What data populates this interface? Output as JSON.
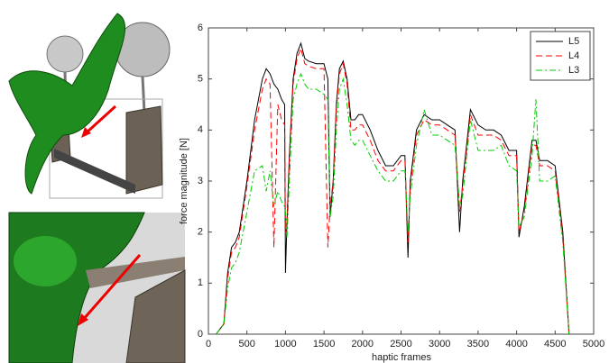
{
  "chart_data": {
    "type": "line",
    "xlabel": "haptic frames",
    "ylabel": "force magnitude [N]",
    "x": [
      100,
      150,
      200,
      250,
      300,
      350,
      400,
      500,
      600,
      700,
      750,
      800,
      850,
      900,
      950,
      990,
      1000,
      1020,
      1050,
      1100,
      1150,
      1200,
      1250,
      1300,
      1400,
      1500,
      1550,
      1580,
      1620,
      1660,
      1700,
      1750,
      1800,
      1850,
      1900,
      1950,
      2000,
      2100,
      2200,
      2300,
      2400,
      2500,
      2550,
      2590,
      2620,
      2700,
      2800,
      2900,
      3000,
      3100,
      3200,
      3260,
      3300,
      3400,
      3500,
      3600,
      3700,
      3800,
      3900,
      4000,
      4030,
      4100,
      4200,
      4250,
      4300,
      4400,
      4500,
      4600,
      4680
    ],
    "series": [
      {
        "name": "L5",
        "color": "#000000",
        "linestyle": "solid",
        "values": [
          0,
          0.1,
          0.2,
          1.2,
          1.7,
          1.8,
          2.0,
          3.0,
          4.2,
          5.0,
          5.2,
          5.1,
          4.9,
          4.8,
          4.6,
          4.5,
          1.2,
          2.2,
          3.5,
          5.0,
          5.5,
          5.7,
          5.4,
          5.35,
          5.3,
          5.3,
          5.0,
          2.3,
          3.0,
          4.5,
          5.2,
          5.35,
          5.0,
          4.2,
          4.2,
          4.3,
          4.3,
          4.0,
          3.6,
          3.3,
          3.3,
          3.5,
          3.5,
          1.5,
          3.0,
          4.0,
          4.3,
          4.2,
          4.2,
          4.1,
          4.0,
          2.0,
          3.0,
          4.4,
          4.1,
          4.0,
          4.0,
          3.9,
          3.6,
          3.6,
          1.9,
          2.5,
          3.8,
          3.8,
          3.4,
          3.4,
          3.3,
          2.0,
          0
        ]
      },
      {
        "name": "L4",
        "color": "#ff0000",
        "linestyle": "dashed",
        "values": [
          0,
          0.1,
          0.2,
          1.1,
          1.6,
          1.7,
          1.9,
          2.9,
          4.0,
          4.8,
          5.0,
          4.9,
          1.7,
          4.5,
          4.2,
          4.1,
          2.0,
          2.1,
          3.4,
          4.9,
          5.4,
          5.6,
          5.3,
          5.25,
          5.2,
          5.2,
          1.7,
          2.5,
          3.0,
          4.4,
          5.1,
          5.3,
          4.9,
          4.0,
          4.0,
          4.1,
          4.1,
          3.8,
          3.4,
          3.2,
          3.2,
          3.4,
          3.4,
          1.8,
          2.9,
          3.9,
          4.2,
          4.1,
          4.1,
          4.0,
          3.9,
          2.4,
          2.9,
          4.3,
          3.9,
          3.9,
          3.9,
          3.8,
          3.5,
          3.5,
          2.0,
          2.4,
          3.7,
          3.7,
          3.3,
          3.3,
          3.2,
          1.9,
          0
        ]
      },
      {
        "name": "L3",
        "color": "#00cc00",
        "linestyle": "dashdot",
        "values": [
          0,
          0.1,
          0.2,
          0.9,
          1.3,
          1.4,
          1.6,
          2.4,
          3.2,
          3.3,
          2.8,
          3.2,
          2.5,
          2.8,
          2.6,
          2.5,
          2.4,
          1.9,
          3.0,
          4.6,
          4.9,
          5.1,
          4.9,
          4.8,
          4.8,
          4.7,
          4.6,
          2.3,
          2.7,
          4.0,
          4.8,
          5.0,
          4.5,
          3.8,
          3.7,
          3.8,
          3.8,
          3.5,
          3.2,
          3.0,
          3.0,
          3.2,
          3.2,
          2.0,
          2.7,
          3.7,
          4.4,
          3.9,
          3.9,
          3.8,
          3.7,
          2.5,
          2.7,
          4.2,
          3.6,
          3.6,
          3.6,
          3.7,
          3.3,
          3.2,
          2.1,
          2.3,
          3.5,
          4.6,
          3.0,
          3.0,
          3.1,
          1.8,
          0
        ]
      }
    ],
    "xlim": [
      0,
      5000
    ],
    "xticks": [
      0,
      500,
      1000,
      1500,
      2000,
      2500,
      3000,
      3500,
      4000,
      4500,
      5000
    ],
    "ylim": [
      0,
      6
    ],
    "yticks": [
      0,
      1,
      2,
      3,
      4,
      5,
      6
    ],
    "grid": false,
    "legend": "upper right"
  }
}
